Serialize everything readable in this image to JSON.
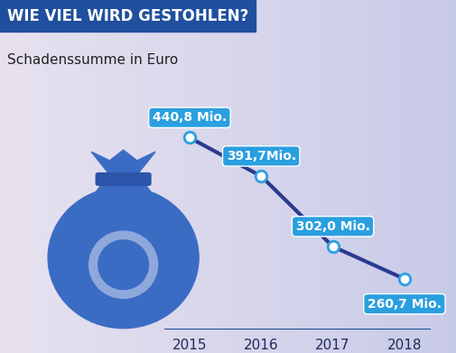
{
  "chart_data": {
    "type": "line",
    "title": "WIE VIEL WIRD GESTOHLEN?",
    "subtitle": "Schadenssumme in Euro",
    "categories": [
      "2015",
      "2016",
      "2017",
      "2018"
    ],
    "values": [
      440.8,
      391.7,
      302.0,
      260.7
    ],
    "value_labels": [
      "440,8 Mio.",
      "391,7Mio.",
      "302,0 Mio.",
      "260,7 Mio."
    ],
    "color": "#2b3990",
    "marker": "o",
    "data_labels": true,
    "tick_labels": "x",
    "grid": false
  }
}
